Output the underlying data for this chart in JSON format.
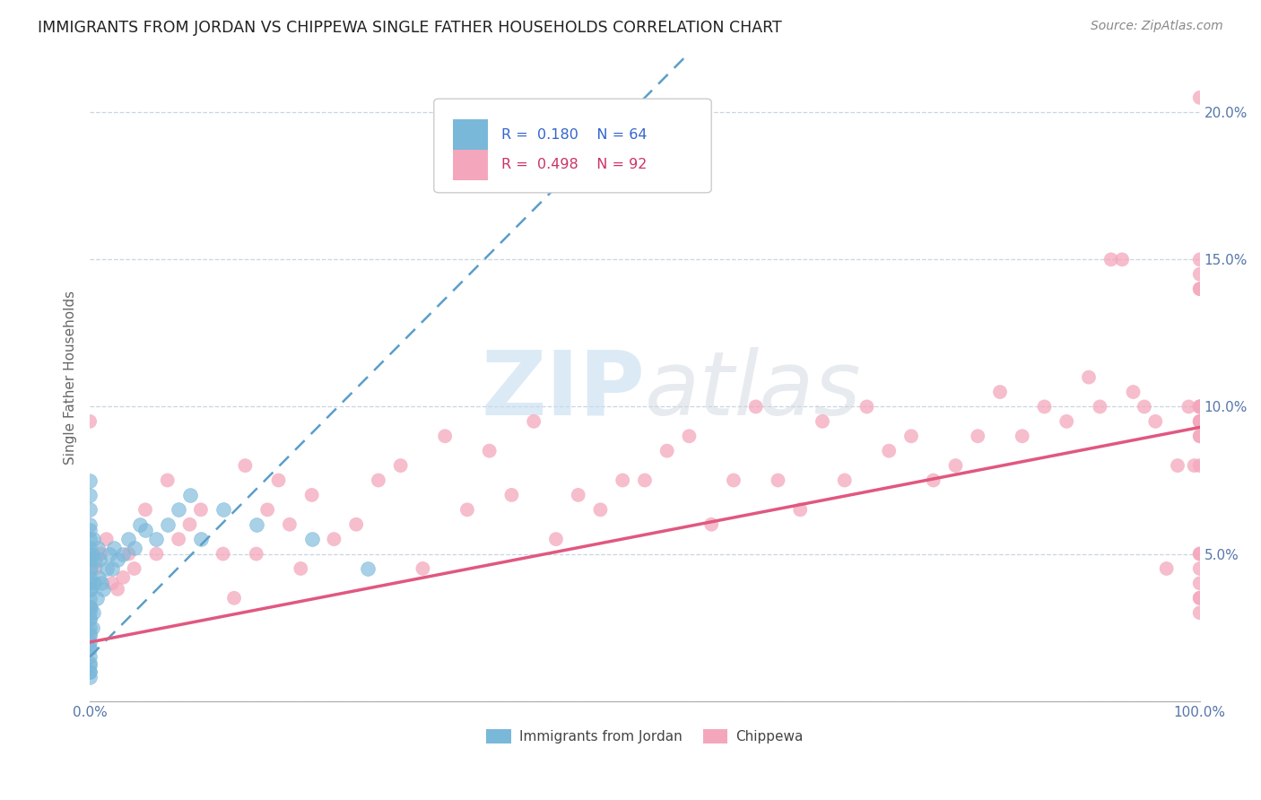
{
  "title": "IMMIGRANTS FROM JORDAN VS CHIPPEWA SINGLE FATHER HOUSEHOLDS CORRELATION CHART",
  "source": "Source: ZipAtlas.com",
  "ylabel": "Single Father Households",
  "watermark": "ZIPatlas",
  "xlim": [
    0,
    100
  ],
  "ylim": [
    0,
    22
  ],
  "xtick_positions": [
    0,
    12.5,
    25,
    37.5,
    50,
    62.5,
    75,
    87.5,
    100
  ],
  "xtick_labels": [
    "0.0%",
    "",
    "",
    "",
    "",
    "",
    "",
    "",
    "100.0%"
  ],
  "ytick_vals": [
    0,
    5,
    10,
    15,
    20
  ],
  "ytick_labels": [
    "",
    "5.0%",
    "10.0%",
    "15.0%",
    "20.0%"
  ],
  "series1_color": "#7ab8d9",
  "series2_color": "#f4a7bc",
  "series1_label": "Immigrants from Jordan",
  "series2_label": "Chippewa",
  "series1_R": 0.18,
  "series1_N": 64,
  "series2_R": 0.498,
  "series2_N": 92,
  "jordan_line_x0": 0,
  "jordan_line_y0": 1.5,
  "jordan_line_x1": 50,
  "jordan_line_y1": 20.5,
  "chippewa_line_x0": 0,
  "chippewa_line_y0": 2.0,
  "chippewa_line_x1": 100,
  "chippewa_line_y1": 9.3,
  "jordan_x": [
    0.0,
    0.0,
    0.0,
    0.0,
    0.0,
    0.0,
    0.0,
    0.0,
    0.0,
    0.0,
    0.0,
    0.0,
    0.0,
    0.0,
    0.0,
    0.0,
    0.0,
    0.0,
    0.0,
    0.0,
    0.0,
    0.0,
    0.0,
    0.0,
    0.0,
    0.0,
    0.0,
    0.0,
    0.0,
    0.0,
    0.1,
    0.1,
    0.1,
    0.2,
    0.2,
    0.3,
    0.3,
    0.4,
    0.5,
    0.6,
    0.7,
    0.8,
    0.9,
    1.0,
    1.2,
    1.5,
    1.8,
    2.0,
    2.2,
    2.5,
    3.0,
    3.5,
    4.0,
    4.5,
    5.0,
    6.0,
    7.0,
    8.0,
    9.0,
    10.0,
    12.0,
    15.0,
    20.0,
    25.0
  ],
  "jordan_y": [
    1.0,
    1.2,
    1.5,
    1.8,
    2.0,
    2.2,
    2.5,
    2.8,
    3.0,
    3.2,
    3.5,
    3.8,
    4.0,
    4.2,
    4.5,
    4.8,
    5.0,
    5.2,
    5.5,
    5.8,
    6.0,
    6.5,
    7.0,
    7.5,
    0.8,
    1.0,
    1.3,
    1.8,
    2.3,
    2.8,
    3.2,
    3.8,
    4.5,
    2.5,
    5.0,
    3.0,
    5.5,
    4.0,
    4.8,
    3.5,
    5.2,
    4.2,
    4.8,
    4.0,
    3.8,
    4.5,
    5.0,
    4.5,
    5.2,
    4.8,
    5.0,
    5.5,
    5.2,
    6.0,
    5.8,
    5.5,
    6.0,
    6.5,
    7.0,
    5.5,
    6.5,
    6.0,
    5.5,
    4.5
  ],
  "chippewa_x": [
    0.0,
    0.0,
    0.5,
    1.0,
    1.5,
    2.0,
    2.5,
    3.0,
    3.5,
    4.0,
    5.0,
    6.0,
    7.0,
    8.0,
    9.0,
    10.0,
    12.0,
    13.0,
    14.0,
    15.0,
    16.0,
    17.0,
    18.0,
    19.0,
    20.0,
    22.0,
    24.0,
    26.0,
    28.0,
    30.0,
    32.0,
    34.0,
    36.0,
    38.0,
    40.0,
    42.0,
    44.0,
    46.0,
    48.0,
    50.0,
    52.0,
    54.0,
    56.0,
    58.0,
    60.0,
    62.0,
    64.0,
    66.0,
    68.0,
    70.0,
    72.0,
    74.0,
    76.0,
    78.0,
    80.0,
    82.0,
    84.0,
    86.0,
    88.0,
    90.0,
    91.0,
    92.0,
    93.0,
    94.0,
    95.0,
    96.0,
    97.0,
    98.0,
    99.0,
    99.5,
    100.0,
    100.0,
    100.0,
    100.0,
    100.0,
    100.0,
    100.0,
    100.0,
    100.0,
    100.0,
    100.0,
    100.0,
    100.0,
    100.0,
    100.0,
    100.0,
    100.0,
    100.0,
    100.0,
    100.0,
    100.0,
    100.0
  ],
  "chippewa_y": [
    9.5,
    3.2,
    4.5,
    5.0,
    5.5,
    4.0,
    3.8,
    4.2,
    5.0,
    4.5,
    6.5,
    5.0,
    7.5,
    5.5,
    6.0,
    6.5,
    5.0,
    3.5,
    8.0,
    5.0,
    6.5,
    7.5,
    6.0,
    4.5,
    7.0,
    5.5,
    6.0,
    7.5,
    8.0,
    4.5,
    9.0,
    6.5,
    8.5,
    7.0,
    9.5,
    5.5,
    7.0,
    6.5,
    7.5,
    7.5,
    8.5,
    9.0,
    6.0,
    7.5,
    10.0,
    7.5,
    6.5,
    9.5,
    7.5,
    10.0,
    8.5,
    9.0,
    7.5,
    8.0,
    9.0,
    10.5,
    9.0,
    10.0,
    9.5,
    11.0,
    10.0,
    15.0,
    15.0,
    10.5,
    10.0,
    9.5,
    4.5,
    8.0,
    10.0,
    8.0,
    5.0,
    14.0,
    3.0,
    10.0,
    9.0,
    8.0,
    3.5,
    14.5,
    10.0,
    15.0,
    9.5,
    20.5,
    4.0,
    9.0,
    14.0,
    10.0,
    9.5,
    5.0,
    10.0,
    9.5,
    3.5,
    4.5
  ]
}
